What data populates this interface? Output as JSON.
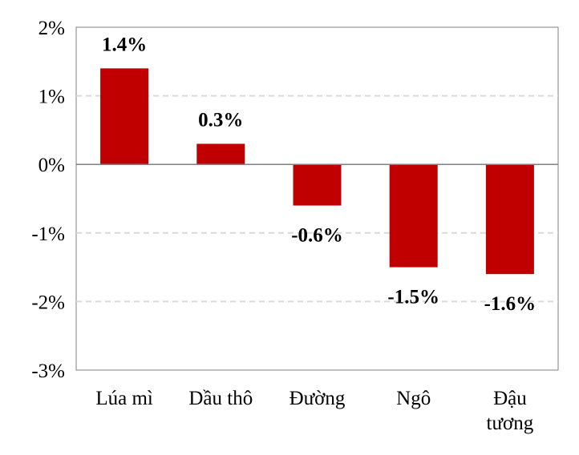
{
  "chart_data": {
    "type": "bar",
    "categories": [
      [
        "Lúa mì"
      ],
      [
        "Dầu thô"
      ],
      [
        "Đường"
      ],
      [
        "Ngô"
      ],
      [
        "Đậu",
        "tương"
      ]
    ],
    "values": [
      1.4,
      0.3,
      -0.6,
      -1.5,
      -1.6
    ],
    "data_labels": [
      "1.4%",
      "0.3%",
      "-0.6%",
      "-1.5%",
      "-1.6%"
    ],
    "yticks": [
      {
        "value": 2,
        "label": "2%"
      },
      {
        "value": 1,
        "label": "1%"
      },
      {
        "value": 0,
        "label": "0%"
      },
      {
        "value": -1,
        "label": "-1%"
      },
      {
        "value": -2,
        "label": "-2%"
      },
      {
        "value": -3,
        "label": "-3%"
      }
    ],
    "ylim": [
      -3,
      2
    ],
    "grid": true,
    "bar_color": "#C00000",
    "grid_color": "#d9d9d9",
    "zero_line_color": "#808080"
  }
}
